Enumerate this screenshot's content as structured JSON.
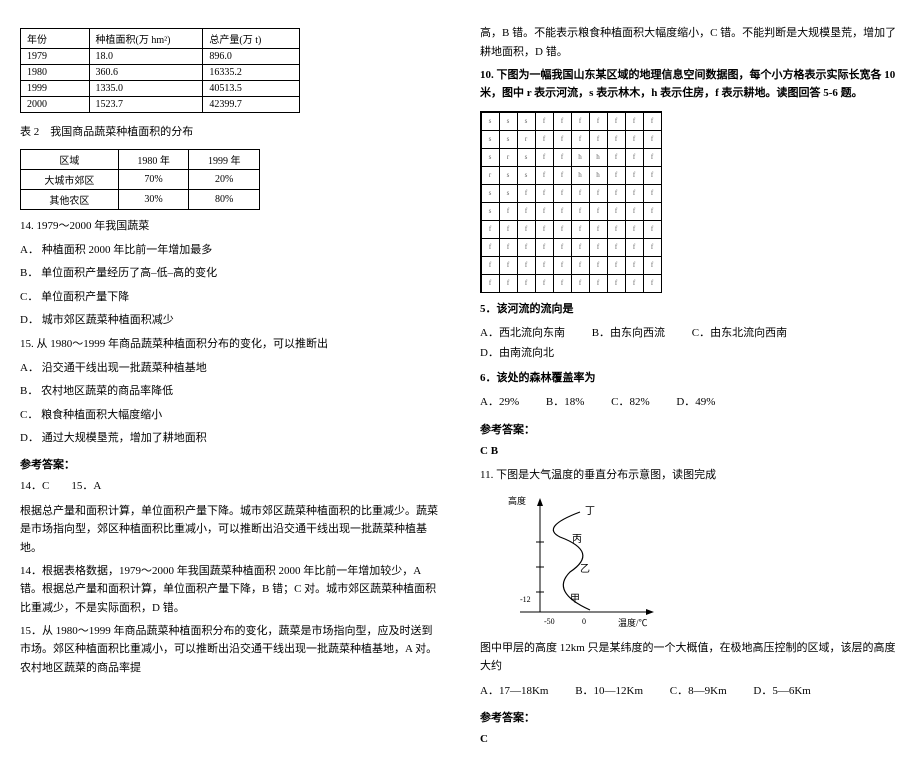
{
  "left": {
    "table1": {
      "headers": [
        "年份",
        "种植面积(万 hm²)",
        "总产量(万 t)"
      ],
      "rows": [
        [
          "1979",
          "18.0",
          "896.0"
        ],
        [
          "1980",
          "360.6",
          "16335.2"
        ],
        [
          "1999",
          "1335.0",
          "40513.5"
        ],
        [
          "2000",
          "1523.7",
          "42399.7"
        ]
      ]
    },
    "caption2": "表 2　我国商品蔬菜种植面积的分布",
    "table2": {
      "headers": [
        "区域",
        "1980 年",
        "1999 年"
      ],
      "rows": [
        [
          "大城市郊区",
          "70%",
          "20%"
        ],
        [
          "其他农区",
          "30%",
          "80%"
        ]
      ]
    },
    "q14": "14. 1979～2000 年我国蔬菜",
    "q14A": "A． 种植面积 2000 年比前一年增加最多",
    "q14B": "B． 单位面积产量经历了高–低–高的变化",
    "q14C": "C． 单位面积产量下降",
    "q14D": "D． 城市郊区蔬菜种植面积减少",
    "q15": "15. 从 1980～1999 年商品蔬菜种植面积分布的变化，可以推断出",
    "q15A": "A． 沿交通干线出现一批蔬菜种植基地",
    "q15B": "B． 农村地区蔬菜的商品率降低",
    "q15C": "C． 粮食种植面积大幅度缩小",
    "q15D": "D． 通过大规模垦荒，增加了耕地面积",
    "ansLabel": "参考答案：",
    "ans1415": "14．C　　15．A",
    "exp1": "根据总产量和面积计算，单位面积产量下降。城市郊区蔬菜种植面积的比重减少。蔬菜是市场指向型，郊区种植面积比重减小，可以推断出沿交通干线出现一批蔬菜种植基地。",
    "exp2": "14．根据表格数据，1979～2000 年我国蔬菜种植面积 2000 年比前一年增加较少，A 错。根据总产量和面积计算，单位面积产量下降，B 错；C 对。城市郊区蔬菜种植面积比重减少，不是实际面积，D 错。",
    "exp3": "15．从 1980～1999 年商品蔬菜种植面积分布的变化，蔬菜是市场指向型，应及时送到市场。郊区种植面积比重减小，可以推断出沿交通干线出现一批蔬菜种植基地，A 对。农村地区蔬菜的商品率提"
  },
  "right": {
    "topText": "高，B 错。不能表示粮食种植面积大幅度缩小，C 错。不能判断是大规模垦荒，增加了耕地面积，D 错。",
    "q10": "10. 下图为一幅我国山东某区域的地理信息空间数据图，每个小方格表示实际长宽各 10 米，图中 r 表示河流，s 表示林木，h 表示住房，f 表示耕地。读图回答 5-6 题。",
    "gridSample": "s/r/h/f",
    "q5": "5．该河流的流向是",
    "q5A": "A．西北流向东南",
    "q5B": "B．由东向西流",
    "q5C": "C．由东北流向西南",
    "q5D": "D．由南流向北",
    "q6": "6．该处的森林覆盖率为",
    "q6A": "A．29%",
    "q6B": "B．18%",
    "q6C": "C．82%",
    "q6D": "D．49%",
    "ansLabel": "参考答案：",
    "ans56": "C  B",
    "q11": "11. 下图是大气温度的垂直分布示意图，读图完成",
    "atmoLabels": {
      "yaxis": "高度",
      "xaxis": "温度/℃",
      "top": "丁",
      "mid1": "丙",
      "mid2": "乙",
      "bottom": "甲",
      "t12": "-12",
      "t50": "-50",
      "zero": "0"
    },
    "q11text": "图中甲层的高度 12km 只是某纬度的一个大概值，在极地高压控制的区域，该层的高度大约",
    "q11A": "A．17—18Km",
    "q11B": "B．10—12Km",
    "q11C": "C．8—9Km",
    "q11D": "D．5—6Km",
    "ans11Label": "参考答案：",
    "ans11": "C"
  }
}
